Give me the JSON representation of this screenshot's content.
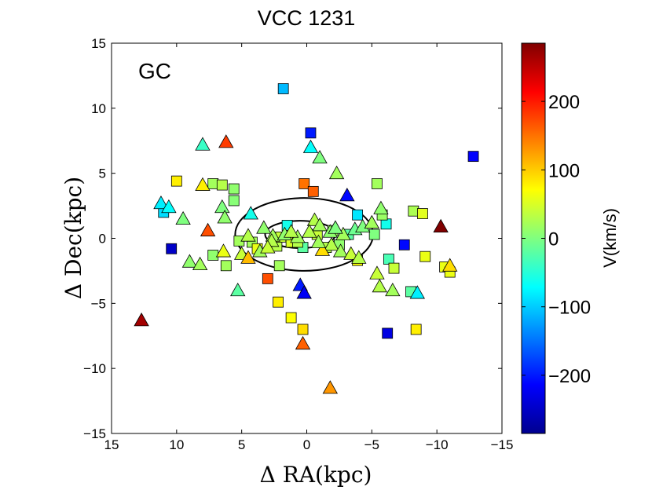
{
  "chart_data": {
    "type": "scatter",
    "title": "VCC 1231",
    "panel_label": "GC",
    "xlabel": "Δ RA(kpc)",
    "ylabel": "Δ Dec(kpc)",
    "xlim": [
      15,
      -15
    ],
    "ylim": [
      -15,
      15
    ],
    "xticks": [
      15,
      10,
      5,
      0,
      -5,
      -10,
      -15
    ],
    "xtick_labels": [
      "15",
      "10",
      "5",
      "0",
      "−5",
      "−10",
      "−15"
    ],
    "yticks": [
      15,
      10,
      5,
      0,
      -5,
      -10,
      -15
    ],
    "ytick_labels": [
      "15",
      "10",
      "5",
      "0",
      "−5",
      "−10",
      "−15"
    ],
    "colorbar": {
      "label": "V(km/s)",
      "range": [
        -285,
        285
      ],
      "colormap": "jet",
      "ticks": [
        200,
        100,
        0,
        -100,
        -200
      ],
      "tick_labels": [
        "200",
        "100",
        "0",
        "−100",
        "−200"
      ]
    },
    "ellipses": [
      {
        "name": "inner-isophote",
        "center": [
          0.5,
          0.3
        ],
        "semi_major_kpc": 2.7,
        "semi_minor_kpc": 1.05
      },
      {
        "name": "outer-isophote",
        "center": [
          0.2,
          0.3
        ],
        "semi_major_kpc": 5.3,
        "semi_minor_kpc": 2.8
      }
    ],
    "series": [
      {
        "name": "squares",
        "marker": "square",
        "points": [
          [
            1.8,
            11.5,
            -110
          ],
          [
            -0.3,
            8.1,
            -200
          ],
          [
            -12.8,
            6.3,
            -215
          ],
          [
            0.2,
            4.2,
            150
          ],
          [
            -0.5,
            3.6,
            160
          ],
          [
            10,
            4.4,
            80
          ],
          [
            7.2,
            4.2,
            20
          ],
          [
            6.5,
            4.1,
            30
          ],
          [
            5.6,
            3.8,
            10
          ],
          [
            5.6,
            2.9,
            5
          ],
          [
            -5.4,
            4.2,
            20
          ],
          [
            11.0,
            2.0,
            -90
          ],
          [
            -3.9,
            1.8,
            -85
          ],
          [
            -6.1,
            1.1,
            -60
          ],
          [
            -8.2,
            2.1,
            25
          ],
          [
            -8.9,
            1.9,
            55
          ],
          [
            -5.8,
            1.8,
            15
          ],
          [
            1.5,
            1.0,
            -60
          ],
          [
            -0.8,
            0.3,
            40
          ],
          [
            -2.0,
            0.6,
            20
          ],
          [
            2.3,
            -0.6,
            30
          ],
          [
            1.2,
            -0.3,
            50
          ],
          [
            0.3,
            -0.7,
            -20
          ],
          [
            -1.5,
            -0.7,
            30
          ],
          [
            -2.5,
            -0.5,
            10
          ],
          [
            -3.2,
            0.3,
            -20
          ],
          [
            4.2,
            -0.3,
            20
          ],
          [
            3.8,
            -0.8,
            60
          ],
          [
            10.4,
            -0.8,
            -245
          ],
          [
            -7.5,
            -0.5,
            -210
          ],
          [
            -9.1,
            -1.4,
            60
          ],
          [
            -6.3,
            -1.6,
            -30
          ],
          [
            -6.7,
            -2.3,
            40
          ],
          [
            -10.6,
            -2.2,
            60
          ],
          [
            -11.0,
            -2.6,
            60
          ],
          [
            6.2,
            -2.1,
            20
          ],
          [
            2.1,
            -2.1,
            20
          ],
          [
            -3.9,
            -1.7,
            70
          ],
          [
            3.0,
            -3.1,
            170
          ],
          [
            2.2,
            -4.9,
            80
          ],
          [
            1.2,
            -6.1,
            70
          ],
          [
            0.3,
            -7.0,
            90
          ],
          [
            -8.0,
            -4.1,
            -20
          ],
          [
            -8.4,
            -7.0,
            80
          ],
          [
            -6.2,
            -7.3,
            -230
          ],
          [
            7.2,
            -1.3,
            10
          ],
          [
            5.2,
            -0.2,
            20
          ],
          [
            -5.2,
            0.3,
            0
          ],
          [
            2.0,
            0.1,
            40
          ],
          [
            0.7,
            -0.3,
            30
          ]
        ]
      },
      {
        "name": "triangles",
        "marker": "triangle",
        "points": [
          [
            8.0,
            7.2,
            -40
          ],
          [
            6.2,
            7.4,
            180
          ],
          [
            -0.3,
            7.0,
            -70
          ],
          [
            -1.0,
            6.2,
            0
          ],
          [
            -2.3,
            5.0,
            20
          ],
          [
            -3.1,
            3.3,
            -210
          ],
          [
            8.0,
            4.1,
            80
          ],
          [
            11.2,
            2.7,
            -80
          ],
          [
            10.6,
            2.4,
            -70
          ],
          [
            9.5,
            1.5,
            0
          ],
          [
            6.5,
            2.4,
            0
          ],
          [
            6.3,
            1.6,
            10
          ],
          [
            4.3,
            1.9,
            -60
          ],
          [
            7.6,
            0.6,
            170
          ],
          [
            5.0,
            -1.2,
            40
          ],
          [
            4.5,
            0.2,
            30
          ],
          [
            3.3,
            0.8,
            10
          ],
          [
            2.6,
            0.2,
            20
          ],
          [
            -0.6,
            1.4,
            30
          ],
          [
            -1.0,
            1.0,
            20
          ],
          [
            -1.8,
            0.5,
            10
          ],
          [
            -2.8,
            0.3,
            20
          ],
          [
            -3.7,
            0.7,
            -10
          ],
          [
            -4.3,
            0.9,
            0
          ],
          [
            -5.7,
            2.3,
            10
          ],
          [
            -5.0,
            1.2,
            20
          ],
          [
            -1.9,
            -0.5,
            30
          ],
          [
            -1.2,
            -0.9,
            90
          ],
          [
            -2.6,
            -1.0,
            20
          ],
          [
            -3.4,
            -1.2,
            40
          ],
          [
            -4.0,
            -1.5,
            30
          ],
          [
            -10.3,
            0.9,
            285
          ],
          [
            4.5,
            -1.5,
            110
          ],
          [
            3.6,
            -1.0,
            20
          ],
          [
            2.7,
            -0.2,
            30
          ],
          [
            1.7,
            0.3,
            10
          ],
          [
            0.7,
            0.1,
            20
          ],
          [
            -0.2,
            0.5,
            30
          ],
          [
            6.4,
            -1.0,
            60
          ],
          [
            9.0,
            -1.8,
            10
          ],
          [
            8.2,
            -2.0,
            20
          ],
          [
            5.3,
            -4.0,
            -20
          ],
          [
            -5.4,
            -2.7,
            40
          ],
          [
            -5.6,
            -3.7,
            30
          ],
          [
            -6.6,
            -4.0,
            20
          ],
          [
            -8.5,
            -4.2,
            -80
          ],
          [
            -11.0,
            -2.1,
            90
          ],
          [
            0.5,
            -3.6,
            -200
          ],
          [
            0.2,
            -4.2,
            -220
          ],
          [
            12.7,
            -6.3,
            265
          ],
          [
            0.3,
            -8.1,
            160
          ],
          [
            -1.8,
            -11.5,
            130
          ],
          [
            -0.9,
            -0.3,
            20
          ],
          [
            -2.2,
            0.8,
            0
          ],
          [
            1.2,
            0.5,
            30
          ],
          [
            3.0,
            -0.7,
            40
          ]
        ]
      }
    ]
  }
}
